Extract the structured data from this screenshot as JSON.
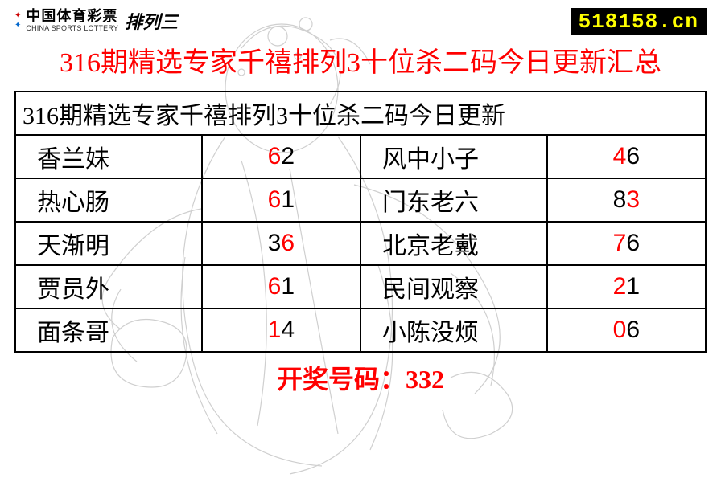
{
  "header": {
    "logo_cn": "中国体育彩票",
    "logo_en": "CHINA SPORTS LOTTERY",
    "logo_variant": "排列三",
    "url": "518158.cn"
  },
  "main_title": "316期精选专家千禧排列3十位杀二码今日更新汇总",
  "table": {
    "header_text": "316期精选专家千禧排列3十位杀二码今日更新",
    "rows": [
      {
        "name_l": "香兰妹",
        "num_l": [
          {
            "d": "6",
            "c": "red"
          },
          {
            "d": "2",
            "c": "blk"
          }
        ],
        "name_r": "风中小子",
        "num_r": [
          {
            "d": "4",
            "c": "red"
          },
          {
            "d": "6",
            "c": "blk"
          }
        ]
      },
      {
        "name_l": "热心肠",
        "num_l": [
          {
            "d": "6",
            "c": "red"
          },
          {
            "d": "1",
            "c": "blk"
          }
        ],
        "name_r": "门东老六",
        "num_r": [
          {
            "d": "8",
            "c": "blk"
          },
          {
            "d": "3",
            "c": "red"
          }
        ]
      },
      {
        "name_l": "天渐明",
        "num_l": [
          {
            "d": "3",
            "c": "blk"
          },
          {
            "d": "6",
            "c": "red"
          }
        ],
        "name_r": "北京老戴",
        "num_r": [
          {
            "d": "7",
            "c": "red"
          },
          {
            "d": "6",
            "c": "blk"
          }
        ]
      },
      {
        "name_l": "贾员外",
        "num_l": [
          {
            "d": "6",
            "c": "red"
          },
          {
            "d": "1",
            "c": "blk"
          }
        ],
        "name_r": "民间观察",
        "num_r": [
          {
            "d": "2",
            "c": "red"
          },
          {
            "d": "1",
            "c": "blk"
          }
        ]
      },
      {
        "name_l": "面条哥",
        "num_l": [
          {
            "d": "1",
            "c": "red"
          },
          {
            "d": "4",
            "c": "blk"
          }
        ],
        "name_r": "小陈没烦",
        "num_r": [
          {
            "d": "0",
            "c": "red"
          },
          {
            "d": "6",
            "c": "blk"
          }
        ]
      }
    ],
    "footer": "开奖号码：332"
  },
  "colors": {
    "title_red": "#ff0000",
    "text_black": "#000000",
    "url_bg": "#000000",
    "url_fg": "#ffff00",
    "bg": "#ffffff"
  }
}
